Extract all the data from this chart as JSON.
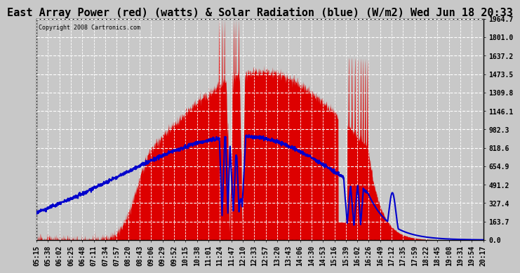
{
  "title": "East Array Power (red) (watts) & Solar Radiation (blue) (W/m2) Wed Jun 18 20:33",
  "copyright": "Copyright 2008 Cartronics.com",
  "background_color": "#c8c8c8",
  "plot_bg_color": "#c8c8c8",
  "y_ticks": [
    0.0,
    163.7,
    327.4,
    491.2,
    654.9,
    818.6,
    982.3,
    1146.1,
    1309.8,
    1473.5,
    1637.2,
    1801.0,
    1964.7
  ],
  "y_max": 1964.7,
  "x_labels": [
    "05:15",
    "05:38",
    "06:02",
    "06:25",
    "06:48",
    "07:11",
    "07:34",
    "07:57",
    "08:20",
    "08:43",
    "09:06",
    "09:29",
    "09:52",
    "10:15",
    "10:38",
    "11:01",
    "11:24",
    "11:47",
    "12:10",
    "12:33",
    "12:57",
    "13:20",
    "13:43",
    "14:06",
    "14:30",
    "14:53",
    "15:16",
    "15:39",
    "16:02",
    "16:26",
    "16:49",
    "17:12",
    "17:35",
    "17:59",
    "18:22",
    "18:45",
    "19:08",
    "19:31",
    "19:54",
    "20:17"
  ],
  "grid_color": "#ffffff",
  "red_color": "#dd0000",
  "blue_color": "#0000cc",
  "title_fontsize": 11,
  "tick_fontsize": 7,
  "n_points": 2000
}
